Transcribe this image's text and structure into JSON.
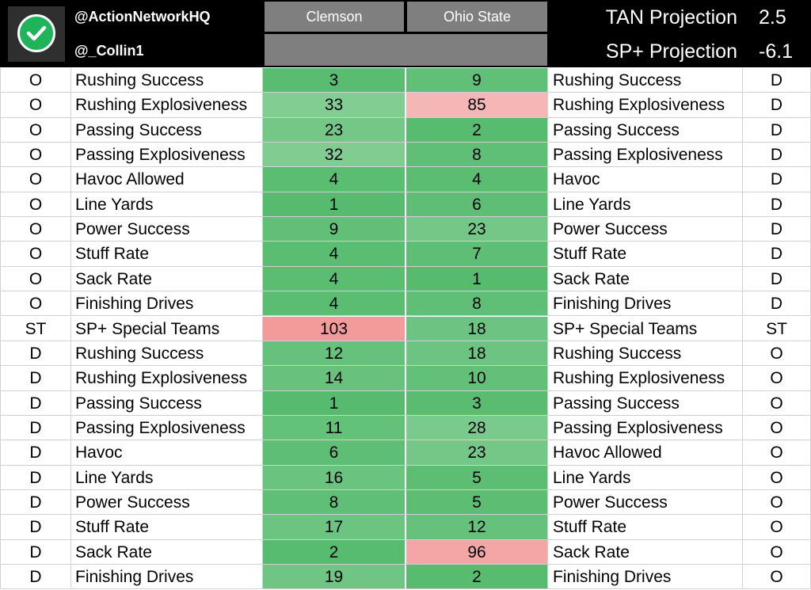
{
  "header": {
    "handle_primary": "@ActionNetworkHQ",
    "handle_secondary": "@_Collin1",
    "team_left": "Clemson",
    "team_right": "Ohio State",
    "projections": [
      {
        "label": "TAN Projection",
        "value": "2.5"
      },
      {
        "label": "SP+ Projection",
        "value": "-6.1"
      }
    ],
    "logo_icon": "check-circle-icon"
  },
  "colors": {
    "header_bg": "#000000",
    "team_header_bg": "#7f7f7f",
    "good_dark": "#57bb6f",
    "bad_dark": "#ef7272"
  },
  "rows": [
    {
      "side": "O",
      "metric": "Rushing Success",
      "clemson": "3",
      "ohio_state": "9",
      "opp_metric": "Rushing Success",
      "opp_side": "D"
    },
    {
      "side": "O",
      "metric": "Rushing Explosiveness",
      "clemson": "33",
      "ohio_state": "85",
      "opp_metric": "Rushing Explosiveness",
      "opp_side": "D"
    },
    {
      "side": "O",
      "metric": "Passing Success",
      "clemson": "23",
      "ohio_state": "2",
      "opp_metric": "Passing Success",
      "opp_side": "D"
    },
    {
      "side": "O",
      "metric": "Passing Explosiveness",
      "clemson": "32",
      "ohio_state": "8",
      "opp_metric": "Passing Explosiveness",
      "opp_side": "D"
    },
    {
      "side": "O",
      "metric": "Havoc Allowed",
      "clemson": "4",
      "ohio_state": "4",
      "opp_metric": "Havoc",
      "opp_side": "D"
    },
    {
      "side": "O",
      "metric": "Line Yards",
      "clemson": "1",
      "ohio_state": "6",
      "opp_metric": "Line Yards",
      "opp_side": "D"
    },
    {
      "side": "O",
      "metric": "Power Success",
      "clemson": "9",
      "ohio_state": "23",
      "opp_metric": "Power Success",
      "opp_side": "D"
    },
    {
      "side": "O",
      "metric": "Stuff Rate",
      "clemson": "4",
      "ohio_state": "7",
      "opp_metric": "Stuff Rate",
      "opp_side": "D"
    },
    {
      "side": "O",
      "metric": "Sack Rate",
      "clemson": "4",
      "ohio_state": "1",
      "opp_metric": "Sack Rate",
      "opp_side": "D"
    },
    {
      "side": "O",
      "metric": "Finishing Drives",
      "clemson": "4",
      "ohio_state": "8",
      "opp_metric": "Finishing Drives",
      "opp_side": "D"
    },
    {
      "side": "ST",
      "metric": "SP+ Special Teams",
      "clemson": "103",
      "ohio_state": "18",
      "opp_metric": "SP+ Special Teams",
      "opp_side": "ST"
    },
    {
      "side": "D",
      "metric": "Rushing Success",
      "clemson": "12",
      "ohio_state": "18",
      "opp_metric": "Rushing Success",
      "opp_side": "O"
    },
    {
      "side": "D",
      "metric": "Rushing Explosiveness",
      "clemson": "14",
      "ohio_state": "10",
      "opp_metric": "Rushing Explosiveness",
      "opp_side": "O"
    },
    {
      "side": "D",
      "metric": "Passing Success",
      "clemson": "1",
      "ohio_state": "3",
      "opp_metric": "Passing Success",
      "opp_side": "O"
    },
    {
      "side": "D",
      "metric": "Passing Explosiveness",
      "clemson": "11",
      "ohio_state": "28",
      "opp_metric": "Passing Explosiveness",
      "opp_side": "O"
    },
    {
      "side": "D",
      "metric": "Havoc",
      "clemson": "6",
      "ohio_state": "23",
      "opp_metric": "Havoc Allowed",
      "opp_side": "O"
    },
    {
      "side": "D",
      "metric": "Line Yards",
      "clemson": "16",
      "ohio_state": "5",
      "opp_metric": "Line Yards",
      "opp_side": "O"
    },
    {
      "side": "D",
      "metric": "Power Success",
      "clemson": "8",
      "ohio_state": "5",
      "opp_metric": "Power Success",
      "opp_side": "O"
    },
    {
      "side": "D",
      "metric": "Stuff Rate",
      "clemson": "17",
      "ohio_state": "12",
      "opp_metric": "Stuff Rate",
      "opp_side": "O"
    },
    {
      "side": "D",
      "metric": "Sack Rate",
      "clemson": "2",
      "ohio_state": "96",
      "opp_metric": "Sack Rate",
      "opp_side": "O"
    },
    {
      "side": "D",
      "metric": "Finishing Drives",
      "clemson": "19",
      "ohio_state": "2",
      "opp_metric": "Finishing Drives",
      "opp_side": "O"
    }
  ]
}
